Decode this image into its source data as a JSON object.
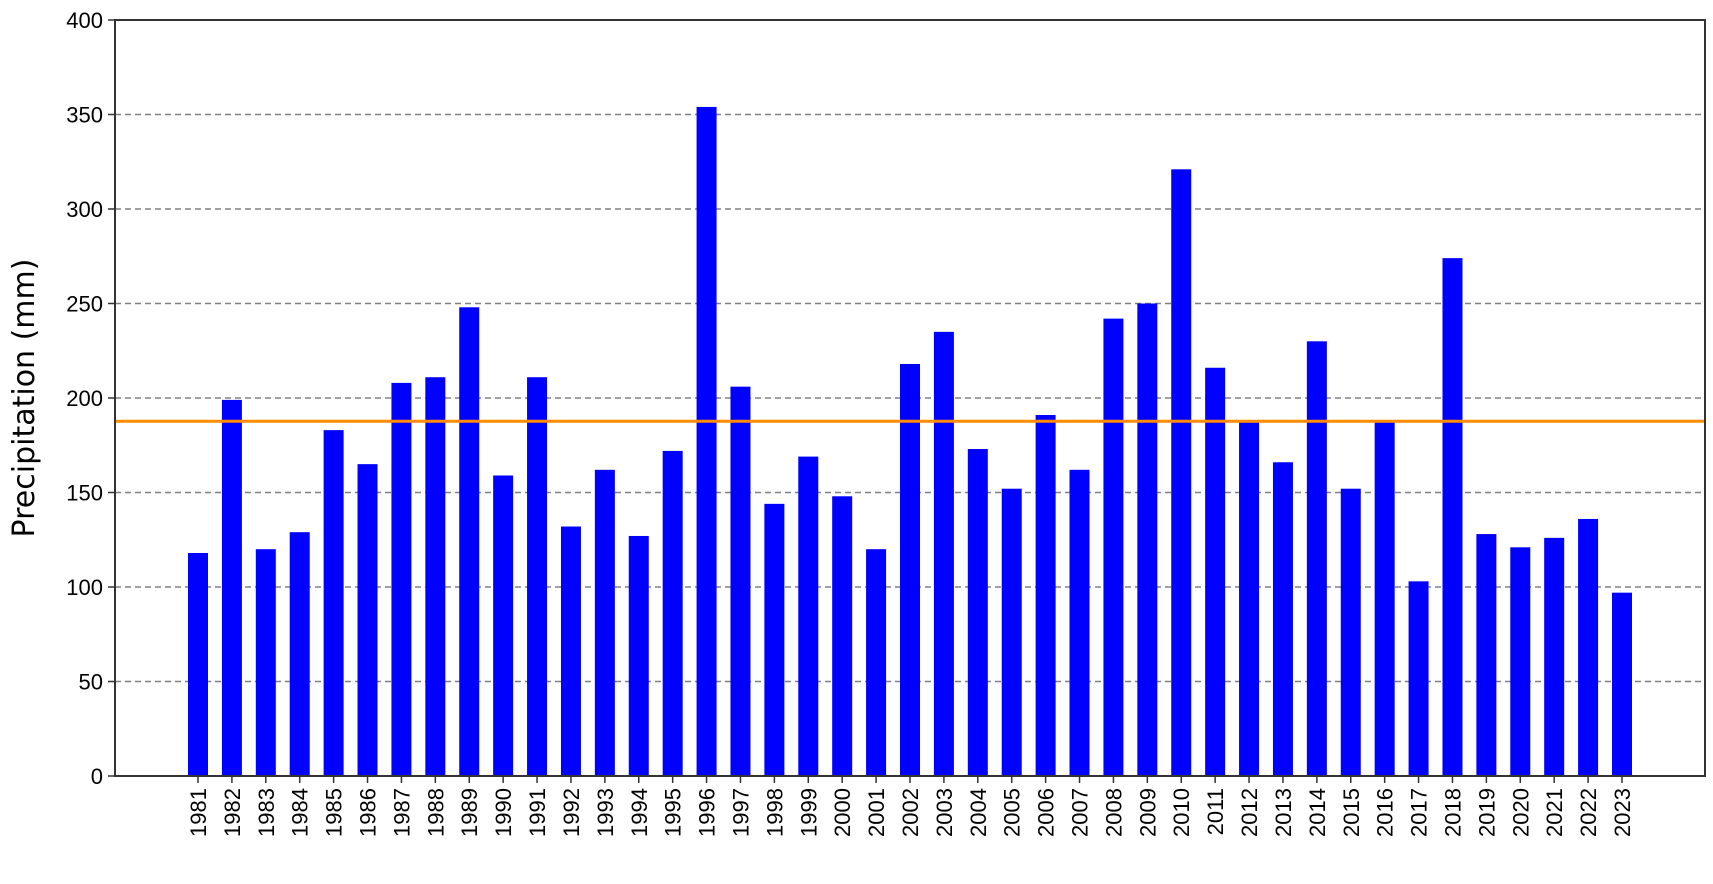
{
  "chart_data": {
    "type": "bar",
    "title": "",
    "xlabel": "",
    "ylabel": "Precipitation (mm)",
    "ylim": [
      0,
      400
    ],
    "yticks": [
      0,
      50,
      100,
      150,
      200,
      250,
      300,
      350,
      400
    ],
    "grid": "horizontal-dashed",
    "categories": [
      "1981",
      "1982",
      "1983",
      "1984",
      "1985",
      "1986",
      "1987",
      "1988",
      "1989",
      "1990",
      "1991",
      "1992",
      "1993",
      "1994",
      "1995",
      "1996",
      "1997",
      "1998",
      "1999",
      "2000",
      "2001",
      "2002",
      "2003",
      "2004",
      "2005",
      "2006",
      "2007",
      "2008",
      "2009",
      "2010",
      "2011",
      "2012",
      "2013",
      "2014",
      "2015",
      "2016",
      "2017",
      "2018",
      "2019",
      "2020",
      "2021",
      "2022",
      "2023"
    ],
    "series": [
      {
        "values": [
          118,
          199,
          120,
          129,
          183,
          165,
          208,
          211,
          248,
          159,
          211,
          132,
          162,
          127,
          172,
          354,
          206,
          144,
          169,
          148,
          120,
          218,
          235,
          173,
          152,
          191,
          162,
          242,
          250,
          321,
          216,
          187,
          166,
          230,
          152,
          187,
          103,
          274,
          128,
          121,
          126,
          136,
          97
        ]
      }
    ],
    "reference_line": {
      "value": 187.7
    },
    "colors": {
      "bars": "#0000ff",
      "reference_line": "#ff8c00",
      "grid": "#808080"
    }
  }
}
